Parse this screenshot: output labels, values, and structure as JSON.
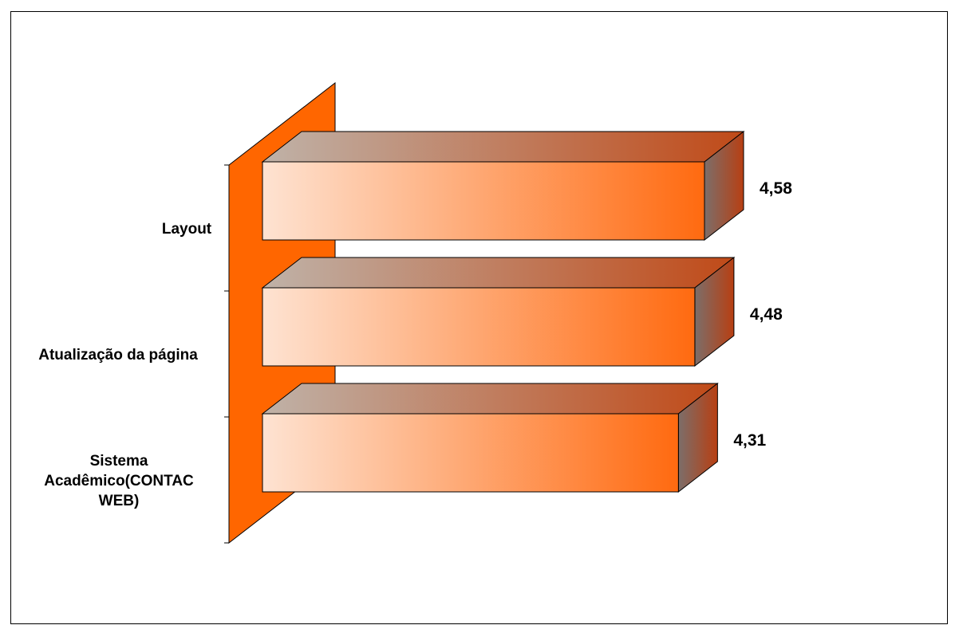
{
  "chart_data": {
    "type": "bar",
    "orientation": "horizontal",
    "three_d": true,
    "categories": [
      "Layout",
      "Atualização da página",
      "Sistema Acadêmico(CONTAC WEB)"
    ],
    "category_lines": [
      [
        "Layout"
      ],
      [
        "Atualização da página"
      ],
      [
        "Sistema",
        "Acadêmico(CONTAC",
        "WEB)"
      ]
    ],
    "values": [
      4.58,
      4.48,
      4.31
    ],
    "value_labels": [
      "4,58",
      "4,48",
      "4,31"
    ],
    "title": "",
    "xlabel": "",
    "ylabel": "",
    "grid": false,
    "legend": "none",
    "colors": {
      "wall": "#ff6600",
      "bar_light": "#fee3d2",
      "bar_dark": "#ff6a10",
      "top_light": "#bfb2a8",
      "top_dark": "#c04a18",
      "side_light": "#7c6e6a",
      "side_dark": "#b83f12"
    }
  }
}
